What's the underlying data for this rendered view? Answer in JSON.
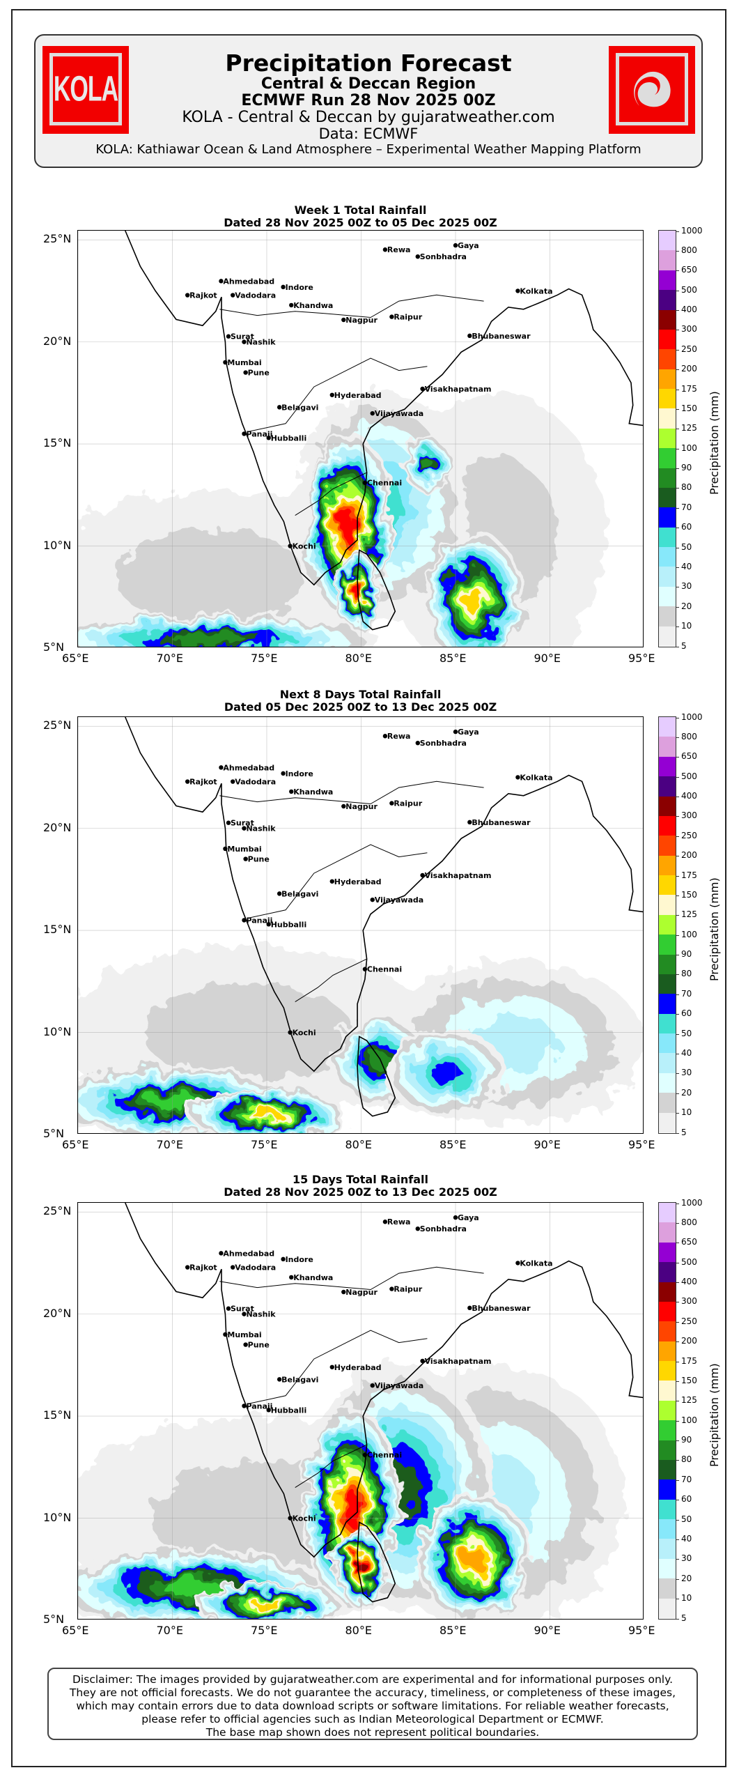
{
  "header": {
    "title": "Precipitation Forecast",
    "subtitle": "Central & Deccan Region",
    "run": "ECMWF Run 28 Nov 2025 00Z",
    "byline": "KOLA - Central & Deccan by gujaratweather.com",
    "data_source": "Data: ECMWF",
    "platform": "KOLA: Kathiawar Ocean & Land Atmosphere – Experimental Weather Mapping Platform",
    "logo_left_text": "KOLA",
    "logo_right_icon": "cyclone-icon",
    "logo_color": "#f20000"
  },
  "chart_data": [
    {
      "type": "heatmap",
      "title": "Week 1 Total Rainfall",
      "subtitle": "Dated 28 Nov 2025 00Z to 05 Dec 2025 00Z",
      "xlim": [
        65,
        95
      ],
      "ylim": [
        5,
        25.45
      ],
      "colorbar_label": "Precipitation (mm)"
    },
    {
      "type": "heatmap",
      "title": "Next 8 Days Total Rainfall",
      "subtitle": "Dated 05 Dec 2025 00Z to 13 Dec 2025 00Z",
      "xlim": [
        65,
        95
      ],
      "ylim": [
        5,
        25.45
      ],
      "colorbar_label": "Precipitation (mm)"
    },
    {
      "type": "heatmap",
      "title": "15 Days Total Rainfall",
      "subtitle": "Dated 28 Nov 2025 00Z to 13 Dec 2025 00Z",
      "xlim": [
        65,
        95
      ],
      "ylim": [
        5,
        25.45
      ],
      "colorbar_label": "Precipitation (mm)"
    }
  ],
  "axes": {
    "lon_ticks": [
      {
        "v": 65,
        "label": "65°E"
      },
      {
        "v": 70,
        "label": "70°E"
      },
      {
        "v": 75,
        "label": "75°E"
      },
      {
        "v": 80,
        "label": "80°E"
      },
      {
        "v": 85,
        "label": "85°E"
      },
      {
        "v": 90,
        "label": "90°E"
      },
      {
        "v": 95,
        "label": "95°E"
      }
    ],
    "lat_ticks": [
      {
        "v": 5,
        "label": "5°N"
      },
      {
        "v": 10,
        "label": "10°N"
      },
      {
        "v": 15,
        "label": "15°N"
      },
      {
        "v": 20,
        "label": "20°N"
      },
      {
        "v": 25,
        "label": "25°N"
      }
    ]
  },
  "colorbar": {
    "label": "Precipitation (mm)",
    "bounds": [
      "5",
      "10",
      "20",
      "30",
      "40",
      "50",
      "60",
      "70",
      "80",
      "90",
      "100",
      "125",
      "150",
      "175",
      "200",
      "250",
      "300",
      "400",
      "500",
      "650",
      "800",
      "1000"
    ],
    "colors": [
      "#f0f0f0",
      "#d3d3d3",
      "#e0ffff",
      "#b8f0fa",
      "#87e8fa",
      "#40e0d0",
      "#0000ff",
      "#1a5c1f",
      "#228b22",
      "#32cd32",
      "#adff2f",
      "#fff8d0",
      "#ffd700",
      "#ffa500",
      "#ff4500",
      "#ff0000",
      "#8b0000",
      "#4b0082",
      "#9400d3",
      "#dda0dd",
      "#e6ccff"
    ]
  },
  "cities": [
    {
      "name": "Rewa",
      "lon": 81.27,
      "lat": 24.52
    },
    {
      "name": "Gaya",
      "lon": 85.0,
      "lat": 24.73
    },
    {
      "name": "Sonbhadra",
      "lon": 83.0,
      "lat": 24.18
    },
    {
      "name": "Ahmedabad",
      "lon": 72.58,
      "lat": 22.98
    },
    {
      "name": "Indore",
      "lon": 75.87,
      "lat": 22.69
    },
    {
      "name": "Rajkot",
      "lon": 70.8,
      "lat": 22.29
    },
    {
      "name": "Vadodara",
      "lon": 73.2,
      "lat": 22.29
    },
    {
      "name": "Khandwa",
      "lon": 76.3,
      "lat": 21.8
    },
    {
      "name": "Kolkata",
      "lon": 88.3,
      "lat": 22.5
    },
    {
      "name": "Nagpur",
      "lon": 79.07,
      "lat": 21.08
    },
    {
      "name": "Raipur",
      "lon": 81.62,
      "lat": 21.23
    },
    {
      "name": "Surat",
      "lon": 72.97,
      "lat": 20.27
    },
    {
      "name": "Nashik",
      "lon": 73.8,
      "lat": 20.0
    },
    {
      "name": "Bhubaneswar",
      "lon": 85.75,
      "lat": 20.3
    },
    {
      "name": "Mumbai",
      "lon": 72.8,
      "lat": 19.0
    },
    {
      "name": "Pune",
      "lon": 73.88,
      "lat": 18.5
    },
    {
      "name": "Visakhapatnam",
      "lon": 83.25,
      "lat": 17.7
    },
    {
      "name": "Hyderabad",
      "lon": 78.46,
      "lat": 17.4
    },
    {
      "name": "Belagavi",
      "lon": 75.67,
      "lat": 16.8
    },
    {
      "name": "Vijayawada",
      "lon": 80.6,
      "lat": 16.5
    },
    {
      "name": "Panaji",
      "lon": 73.8,
      "lat": 15.5
    },
    {
      "name": "Hubballi",
      "lon": 75.1,
      "lat": 15.3
    },
    {
      "name": "Chennai",
      "lon": 80.2,
      "lat": 13.1
    },
    {
      "name": "Kochi",
      "lon": 76.24,
      "lat": 10.0
    }
  ],
  "disclaimer": [
    "Disclaimer: The images provided by gujaratweather.com are experimental and for informational purposes only.",
    "They are not official forecasts. We do not guarantee the accuracy, timeliness, or completeness of these images,",
    "which may contain errors due to data download scripts or software limitations. For reliable weather forecasts,",
    "please refer to official agencies such as Indian Meteorological Department or ECMWF.",
    "The base map shown does not represent political boundaries."
  ]
}
